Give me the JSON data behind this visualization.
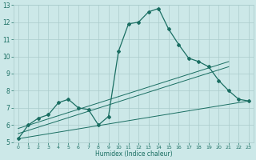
{
  "xlabel": "Humidex (Indice chaleur)",
  "bg_color": "#cce8e8",
  "line_color": "#1a6e62",
  "grid_color": "#aacccc",
  "xlim": [
    -0.5,
    23.5
  ],
  "ylim": [
    5,
    13
  ],
  "xticks": [
    0,
    1,
    2,
    3,
    4,
    5,
    6,
    7,
    8,
    9,
    10,
    11,
    12,
    13,
    14,
    15,
    16,
    17,
    18,
    19,
    20,
    21,
    22,
    23
  ],
  "yticks": [
    5,
    6,
    7,
    8,
    9,
    10,
    11,
    12,
    13
  ],
  "main_line": [
    5.2,
    6.0,
    6.4,
    6.6,
    7.3,
    7.5,
    7.0,
    6.9,
    6.0,
    6.5,
    10.3,
    11.9,
    12.0,
    12.6,
    12.8,
    11.6,
    10.7,
    9.9,
    9.7,
    9.4,
    8.6,
    8.0,
    7.5,
    7.4
  ],
  "trend1_x": [
    0,
    23
  ],
  "trend1_y": [
    5.2,
    7.4
  ],
  "trend2_x": [
    0,
    21
  ],
  "trend2_y": [
    5.5,
    9.4
  ],
  "trend3_x": [
    0,
    21
  ],
  "trend3_y": [
    5.8,
    9.7
  ]
}
